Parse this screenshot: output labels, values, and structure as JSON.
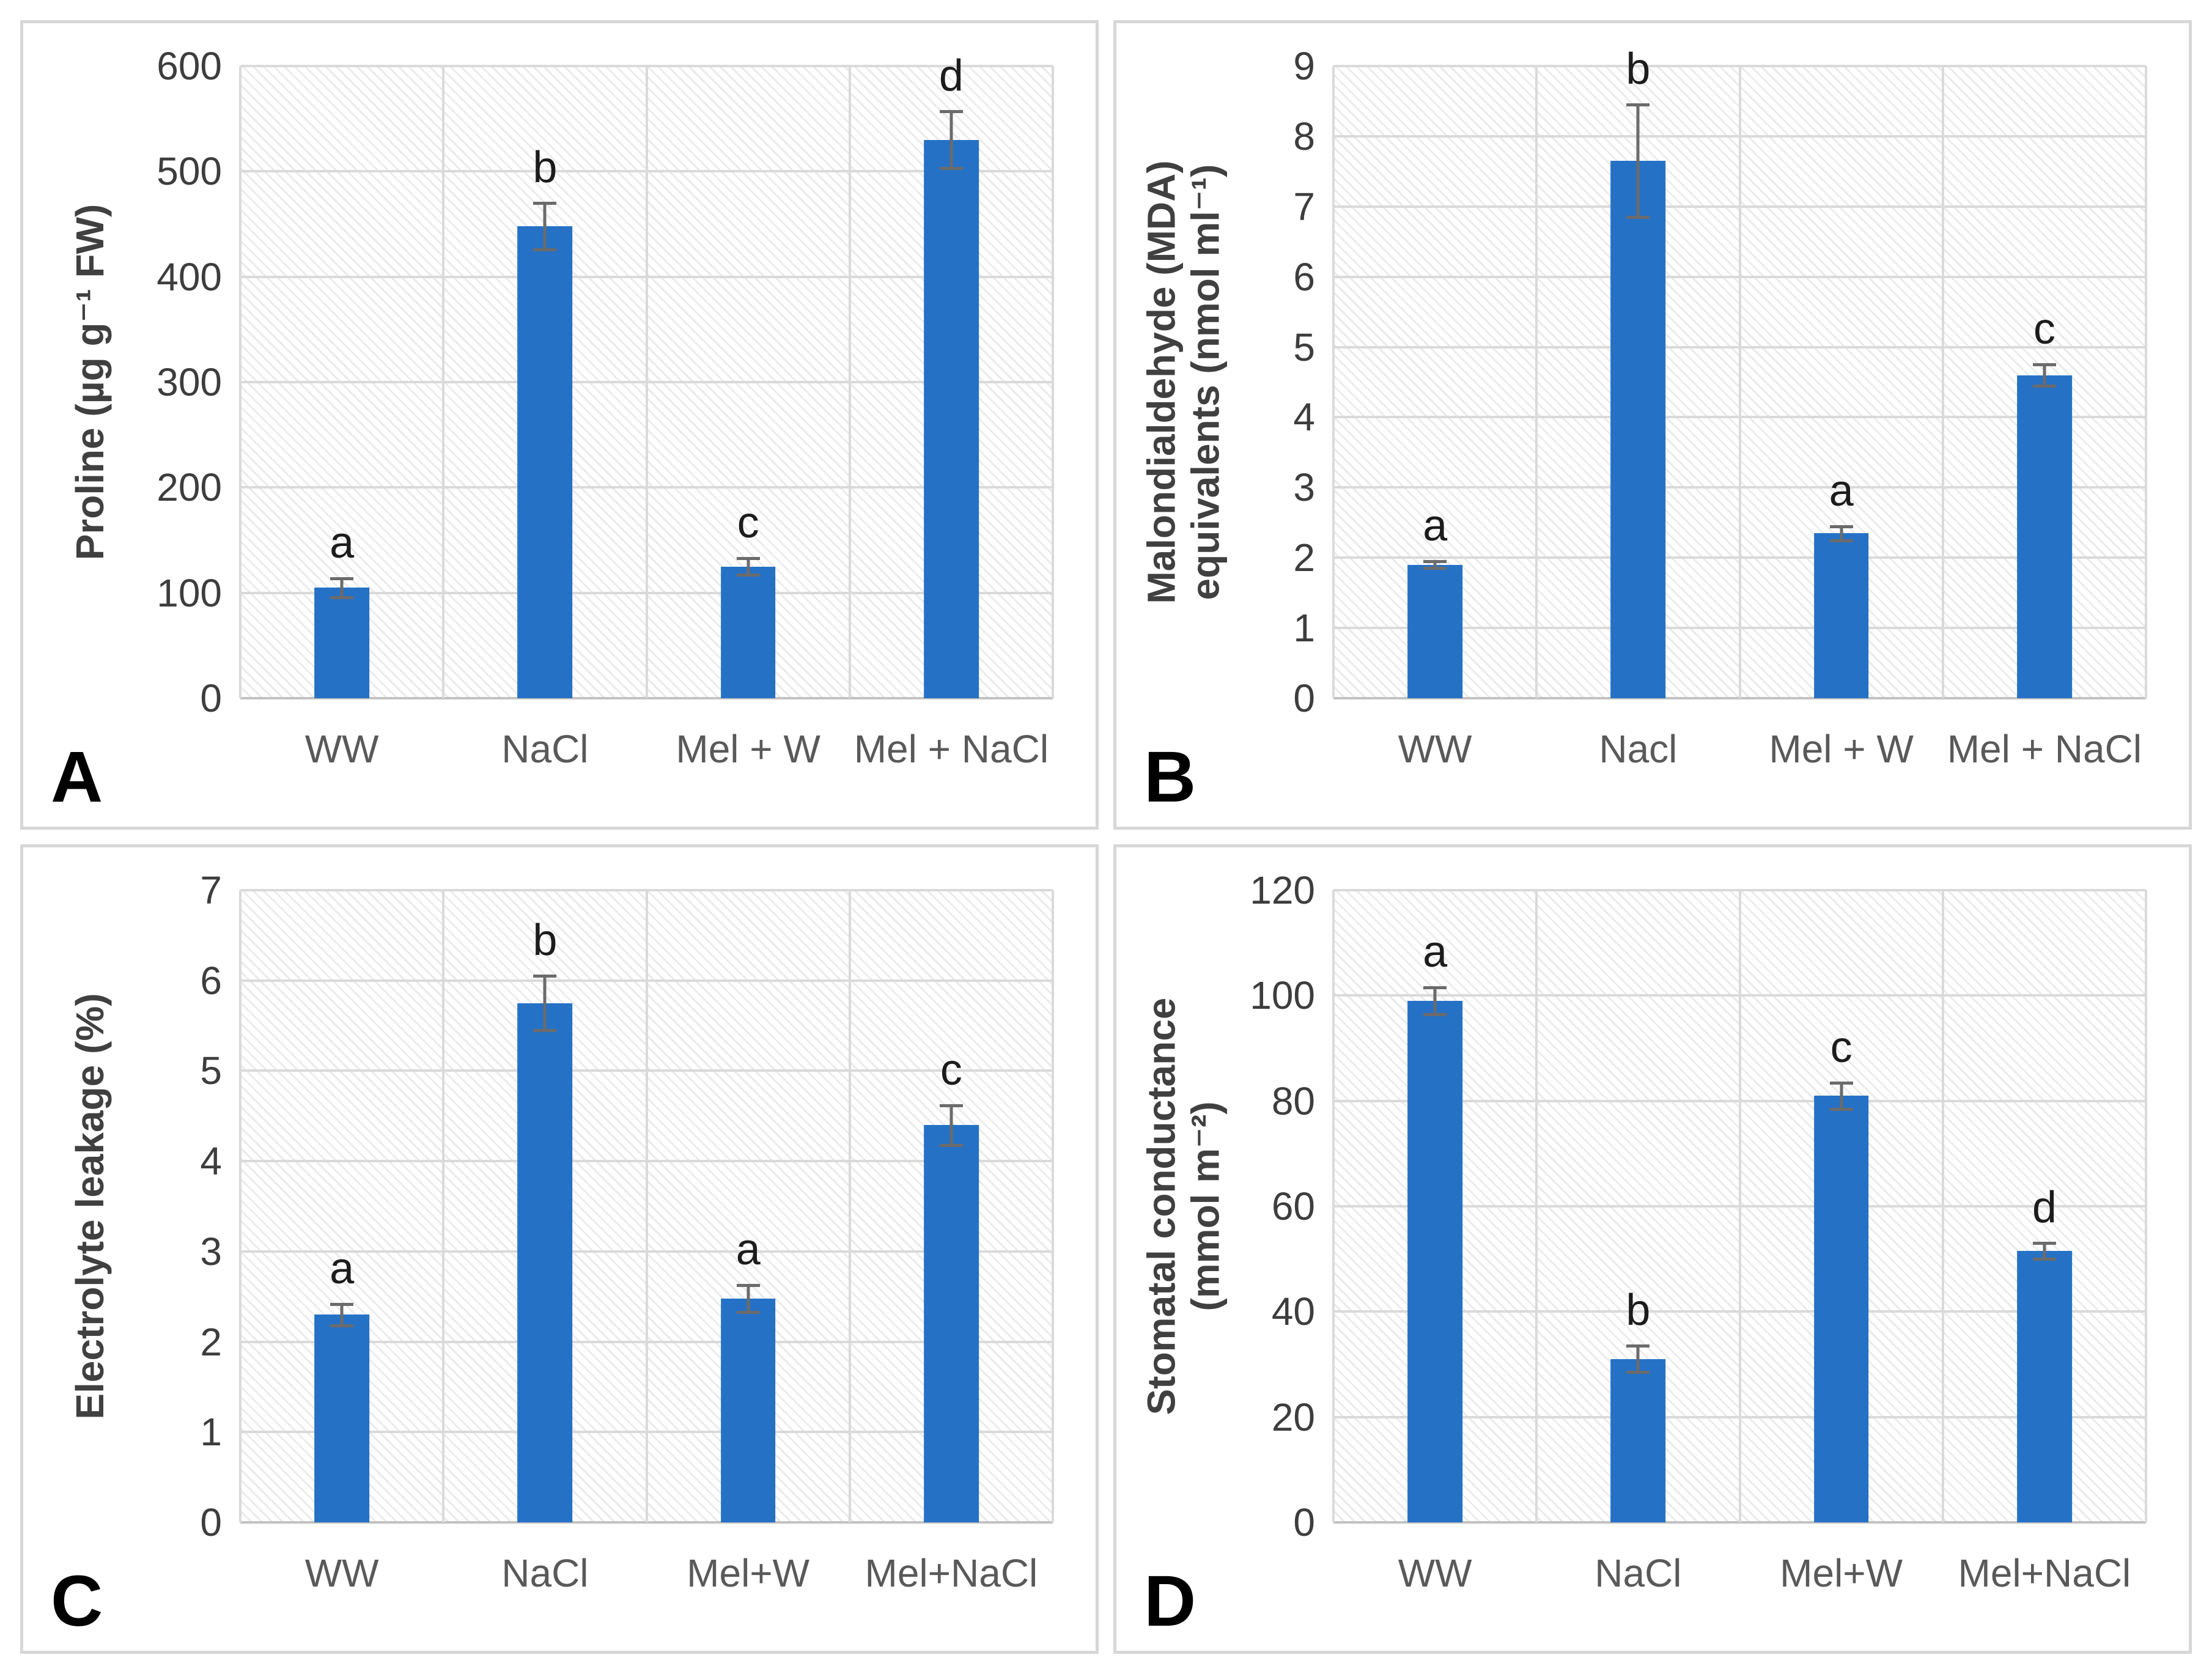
{
  "colors": {
    "bar": "#2571C6",
    "grid": "#DADADA",
    "axis": "#C2C2C2",
    "error": "#6B6B6B",
    "tick": "#3D3D3D",
    "category": "#595959",
    "ytitle": "#404040",
    "sig": "#1C1C1C",
    "panel_letter": "#000000",
    "panel_border": "#D7D7D7",
    "hatch": "#EBEBEB",
    "background": "#FFFFFF"
  },
  "chart_data": [
    {
      "panel_label": "A",
      "type": "bar",
      "title": "",
      "ylabel": "Proline (µg g⁻¹ FW)",
      "ylabel_lines": [
        "Proline (µg g⁻¹ FW)"
      ],
      "xlabel": "",
      "categories": [
        "WW",
        "NaCl",
        "Mel + W",
        "Mel + NaCl"
      ],
      "values": [
        105,
        448,
        125,
        530
      ],
      "errors": [
        9,
        22,
        8,
        27
      ],
      "sig_letters": [
        "a",
        "b",
        "c",
        "d"
      ],
      "ylim": [
        0,
        600
      ],
      "ystep": 100,
      "grid": true,
      "legend": false,
      "hatched_plot_background": true
    },
    {
      "panel_label": "B",
      "type": "bar",
      "title": "",
      "ylabel": "Malondialdehyde (MDA) equivalents (nmol ml⁻¹)",
      "ylabel_lines": [
        "Malondialdehyde (MDA)",
        "equivalents (nmol ml⁻¹)"
      ],
      "xlabel": "",
      "categories": [
        "WW",
        "Nacl",
        "Mel + W",
        "Mel + NaCl"
      ],
      "values": [
        1.9,
        7.65,
        2.35,
        4.6
      ],
      "errors": [
        0.05,
        0.8,
        0.1,
        0.15
      ],
      "sig_letters": [
        "a",
        "b",
        "a",
        "c"
      ],
      "ylim": [
        0,
        9
      ],
      "ystep": 1,
      "grid": true,
      "legend": false,
      "hatched_plot_background": true
    },
    {
      "panel_label": "C",
      "type": "bar",
      "title": "",
      "ylabel": "Electrolyte leakage (%)",
      "ylabel_lines": [
        "Electrolyte leakage (%)"
      ],
      "xlabel": "",
      "categories": [
        "WW",
        "NaCl",
        "Mel+W",
        "Mel+NaCl"
      ],
      "values": [
        2.3,
        5.75,
        2.48,
        4.4
      ],
      "errors": [
        0.12,
        0.3,
        0.15,
        0.22
      ],
      "sig_letters": [
        "a",
        "b",
        "a",
        "c"
      ],
      "ylim": [
        0,
        7
      ],
      "ystep": 1,
      "grid": true,
      "legend": false,
      "hatched_plot_background": true
    },
    {
      "panel_label": "D",
      "type": "bar",
      "title": "",
      "ylabel": "Stomatal conductance (mmol m⁻²)",
      "ylabel_lines": [
        "Stomatal conductance",
        "(mmol m⁻²)"
      ],
      "xlabel": "",
      "categories": [
        "WW",
        "NaCl",
        "Mel+W",
        "Mel+NaCl"
      ],
      "values": [
        99,
        31,
        81,
        51.5
      ],
      "errors": [
        2.5,
        2.5,
        2.5,
        1.5
      ],
      "sig_letters": [
        "a",
        "b",
        "c",
        "d"
      ],
      "ylim": [
        0,
        120
      ],
      "ystep": 20,
      "grid": true,
      "legend": false,
      "hatched_plot_background": true
    }
  ]
}
